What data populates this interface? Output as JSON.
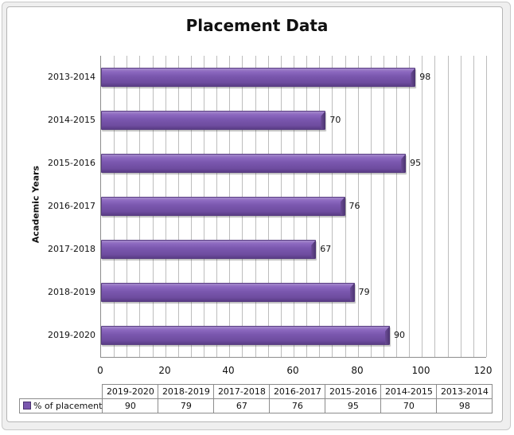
{
  "chart_data": {
    "type": "bar",
    "orientation": "horizontal",
    "title": "Placement Data",
    "xlabel": "",
    "ylabel": "Academic Years",
    "categories": [
      "2013-2014",
      "2014-2015",
      "2015-2016",
      "2016-2017",
      "2017-2018",
      "2018-2019",
      "2019-2020"
    ],
    "series": [
      {
        "name": "% of placement",
        "values": [
          98,
          70,
          95,
          76,
          67,
          79,
          90
        ],
        "color": "#7a57ae"
      }
    ],
    "xlim": [
      0,
      120
    ],
    "xticks": [
      0,
      20,
      40,
      60,
      80,
      100,
      120
    ],
    "grid": true,
    "data_labels": true,
    "legend_position": "data-table",
    "data_table": {
      "header": [
        "2019-2020",
        "2018-2019",
        "2017-2018",
        "2016-2017",
        "2015-2016",
        "2014-2015",
        "2013-2014"
      ],
      "row_label": "% of placement",
      "values": [
        "90",
        "79",
        "67",
        "76",
        "95",
        "70",
        "98"
      ]
    }
  },
  "labels": {
    "tick0": "0",
    "tick1": "20",
    "tick2": "40",
    "tick3": "60",
    "tick4": "80",
    "tick5": "100",
    "tick6": "120"
  }
}
